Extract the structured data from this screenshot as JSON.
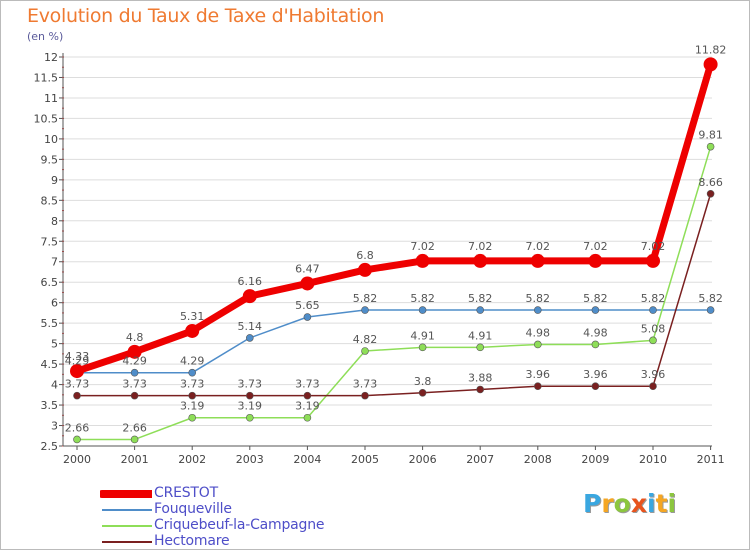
{
  "title": "Evolution du Taux de Taxe d'Habitation",
  "unit_label": "(en %)",
  "brand": {
    "letters": [
      "P",
      "r",
      "o",
      "x",
      "i",
      "t",
      "i"
    ],
    "colors": [
      "#3aa7e0",
      "#f5a623",
      "#8cc63f",
      "#e8541e",
      "#3aa7e0",
      "#f5a623",
      "#8cc63f"
    ]
  },
  "chart_data": {
    "type": "line",
    "title": "Evolution du Taux de Taxe d'Habitation",
    "ylabel": "(en %)",
    "xlabel": "",
    "ylim": [
      2.5,
      12
    ],
    "yticks": [
      "2.5",
      "3",
      "3.5",
      "4",
      "4.5",
      "5",
      "5.5",
      "6",
      "6.5",
      "7",
      "7.5",
      "8",
      "8.5",
      "9",
      "9.5",
      "10",
      "10.5",
      "11",
      "11.5",
      "12"
    ],
    "x": [
      "2000",
      "2001",
      "2002",
      "2003",
      "2004",
      "2005",
      "2006",
      "2007",
      "2008",
      "2009",
      "2010",
      "2011"
    ],
    "legend_position": "bottom-left",
    "series": [
      {
        "name": "CRESTOT",
        "color": "#ee0000",
        "width": 7,
        "marker": 7,
        "values": [
          4.33,
          4.8,
          5.31,
          6.16,
          6.47,
          6.8,
          7.02,
          7.02,
          7.02,
          7.02,
          7.02,
          11.82
        ],
        "labels": [
          "4.33",
          "4.8",
          "5.31",
          "6.16",
          "6.47",
          "6.8",
          "7.02",
          "7.02",
          "7.02",
          "7.02",
          "7.02",
          "11.82"
        ]
      },
      {
        "name": "Fouqueville",
        "color": "#4f8dc9",
        "width": 1.5,
        "marker": 3.5,
        "values": [
          4.29,
          4.29,
          4.29,
          5.14,
          5.65,
          5.82,
          5.82,
          5.82,
          5.82,
          5.82,
          5.82,
          5.82
        ],
        "labels": [
          "4.29",
          "4.29",
          "4.29",
          "5.14",
          "5.65",
          "5.82",
          "5.82",
          "5.82",
          "5.82",
          "5.82",
          "5.82",
          "5.82"
        ]
      },
      {
        "name": "Criquebeuf-la-Campagne",
        "color": "#8ede58",
        "width": 1.5,
        "marker": 3.5,
        "values": [
          2.66,
          2.66,
          3.19,
          3.19,
          3.19,
          4.82,
          4.91,
          4.91,
          4.98,
          4.98,
          5.08,
          9.81
        ],
        "labels": [
          "2.66",
          "2.66",
          "3.19",
          "3.19",
          "3.19",
          "4.82",
          "4.91",
          "4.91",
          "4.98",
          "4.98",
          "5.08",
          "9.81"
        ]
      },
      {
        "name": "Hectomare",
        "color": "#7a2020",
        "width": 1.5,
        "marker": 3.5,
        "values": [
          3.73,
          3.73,
          3.73,
          3.73,
          3.73,
          3.73,
          3.8,
          3.88,
          3.96,
          3.96,
          3.96,
          8.66
        ],
        "labels": [
          "3.73",
          "3.73",
          "3.73",
          "3.73",
          "3.73",
          "3.73",
          "3.8",
          "3.88",
          "3.96",
          "3.96",
          "3.96",
          "8.66"
        ]
      }
    ]
  }
}
